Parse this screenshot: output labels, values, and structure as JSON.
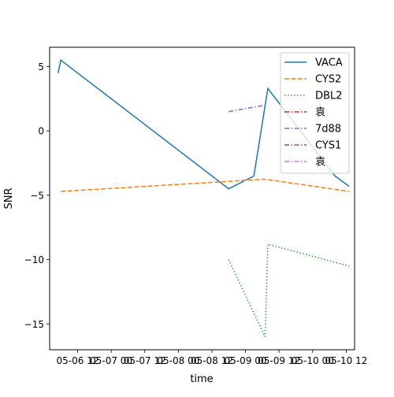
{
  "chart_data": {
    "type": "line",
    "title": "",
    "xlabel": "time",
    "ylabel": "SNR",
    "x_axis_type": "datetime",
    "xlim": [
      "2023-05-06 02:00",
      "2023-05-10 15:00"
    ],
    "ylim": [
      -17,
      6.5
    ],
    "x_ticks": [
      {
        "value": "2023-05-06 12:00",
        "label": "05-06 12"
      },
      {
        "value": "2023-05-07 00:00",
        "label": "05-07 00"
      },
      {
        "value": "2023-05-07 12:00",
        "label": "05-07 12"
      },
      {
        "value": "2023-05-08 00:00",
        "label": "05-08 00"
      },
      {
        "value": "2023-05-08 12:00",
        "label": "05-08 12"
      },
      {
        "value": "2023-05-09 00:00",
        "label": "05-09 00"
      },
      {
        "value": "2023-05-09 12:00",
        "label": "05-09 12"
      },
      {
        "value": "2023-05-10 00:00",
        "label": "05-10 00"
      },
      {
        "value": "2023-05-10 12:00",
        "label": "05-10 12"
      }
    ],
    "y_ticks": [
      5,
      0,
      -5,
      -10,
      -15
    ],
    "grid": false,
    "legend_position": "upper right",
    "series": [
      {
        "name": "VACA",
        "color": "#1f77b4",
        "dash": "solid",
        "points": [
          {
            "x": "2023-05-06 05:00",
            "y": 4.5
          },
          {
            "x": "2023-05-06 06:00",
            "y": 5.5
          },
          {
            "x": "2023-05-08 18:00",
            "y": -4.5
          },
          {
            "x": "2023-05-09 03:00",
            "y": -3.5
          },
          {
            "x": "2023-05-09 08:00",
            "y": 3.3
          },
          {
            "x": "2023-05-10 08:00",
            "y": -3.5
          },
          {
            "x": "2023-05-10 13:00",
            "y": -4.3
          }
        ]
      },
      {
        "name": "CYS2",
        "color": "#ff7f0e",
        "dash": "dashed",
        "points": [
          {
            "x": "2023-05-06 06:00",
            "y": -4.7
          },
          {
            "x": "2023-05-09 07:00",
            "y": -3.75
          },
          {
            "x": "2023-05-10 13:00",
            "y": -4.7
          }
        ]
      },
      {
        "name": "DBL2",
        "color": "#2ca02c",
        "dash": "dotted",
        "points": [
          {
            "x": "2023-05-08 18:00",
            "y": -10.0
          },
          {
            "x": "2023-05-09 07:00",
            "y": -16.0
          },
          {
            "x": "2023-05-09 08:00",
            "y": -8.8
          },
          {
            "x": "2023-05-10 13:00",
            "y": -10.5
          }
        ]
      },
      {
        "name": "袁",
        "color": "#d62728",
        "dash": "dashdot",
        "points": []
      },
      {
        "name": "7d88",
        "color": "#9467bd",
        "dash": "dashdot",
        "points": [
          {
            "x": "2023-05-08 18:00",
            "y": 1.5
          },
          {
            "x": "2023-05-09 07:00",
            "y": 2.0
          }
        ]
      },
      {
        "name": "CYS1",
        "color": "#8c564b",
        "dash": "dashdot",
        "points": []
      },
      {
        "name": "袁",
        "color": "#e377c2",
        "dash": "dashdot",
        "points": []
      }
    ]
  }
}
